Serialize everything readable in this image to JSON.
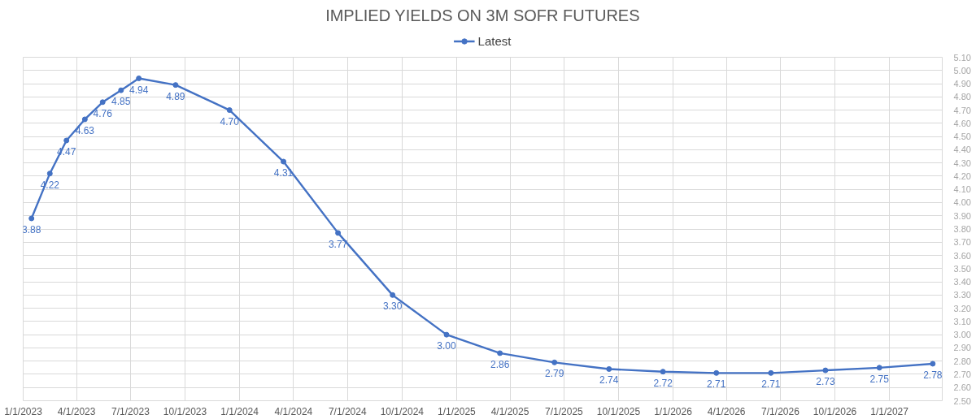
{
  "chart_data": {
    "type": "line",
    "title": "IMPLIED YIELDS ON 3M SOFR FUTURES",
    "x": [
      "2023-01-15",
      "2023-02-15",
      "2023-03-15",
      "2023-04-15",
      "2023-05-15",
      "2023-06-15",
      "2023-07-15",
      "2023-09-15",
      "2023-12-15",
      "2024-03-15",
      "2024-06-15",
      "2024-09-15",
      "2024-12-15",
      "2025-03-15",
      "2025-06-15",
      "2025-09-15",
      "2025-12-15",
      "2026-03-15",
      "2026-06-15",
      "2026-09-15",
      "2026-12-15",
      "2027-03-15"
    ],
    "series": [
      {
        "name": "Latest",
        "color": "#4472c4",
        "values": [
          3.88,
          4.22,
          4.47,
          4.63,
          4.76,
          4.85,
          4.94,
          4.89,
          4.7,
          4.31,
          3.77,
          3.3,
          3.0,
          2.86,
          2.79,
          2.74,
          2.72,
          2.71,
          2.71,
          2.73,
          2.75,
          2.78
        ],
        "value_labels": [
          "3.88",
          "4.22",
          "4.47",
          "4.63",
          "4.76",
          "4.85",
          "4.94",
          "4.89",
          "4.70",
          "4.31",
          "3.77",
          "3.30",
          "3.00",
          "2.86",
          "2.79",
          "2.74",
          "2.72",
          "2.71",
          "2.71",
          "2.73",
          "2.75",
          "2.78"
        ]
      }
    ],
    "xlim": [
      "2023-01-01",
      "2027-03-31"
    ],
    "xticks": [
      {
        "value": "2023-01-01",
        "label": "1/1/2023"
      },
      {
        "value": "2023-04-01",
        "label": "4/1/2023"
      },
      {
        "value": "2023-07-01",
        "label": "7/1/2023"
      },
      {
        "value": "2023-10-01",
        "label": "10/1/2023"
      },
      {
        "value": "2024-01-01",
        "label": "1/1/2024"
      },
      {
        "value": "2024-04-01",
        "label": "4/1/2024"
      },
      {
        "value": "2024-07-01",
        "label": "7/1/2024"
      },
      {
        "value": "2024-10-01",
        "label": "10/1/2024"
      },
      {
        "value": "2025-01-01",
        "label": "1/1/2025"
      },
      {
        "value": "2025-04-01",
        "label": "4/1/2025"
      },
      {
        "value": "2025-07-01",
        "label": "7/1/2025"
      },
      {
        "value": "2025-10-01",
        "label": "10/1/2025"
      },
      {
        "value": "2026-01-01",
        "label": "1/1/2026"
      },
      {
        "value": "2026-04-01",
        "label": "4/1/2026"
      },
      {
        "value": "2026-07-01",
        "label": "7/1/2026"
      },
      {
        "value": "2026-10-01",
        "label": "10/1/2026"
      },
      {
        "value": "2027-01-01",
        "label": "1/1/2027"
      }
    ],
    "ylim": [
      2.5,
      5.1
    ],
    "yticks": [
      {
        "value": 2.5,
        "label": "2.50"
      },
      {
        "value": 2.6,
        "label": "2.60"
      },
      {
        "value": 2.7,
        "label": "2.70"
      },
      {
        "value": 2.8,
        "label": "2.80"
      },
      {
        "value": 2.9,
        "label": "2.90"
      },
      {
        "value": 3.0,
        "label": "3.00"
      },
      {
        "value": 3.1,
        "label": "3.10"
      },
      {
        "value": 3.2,
        "label": "3.20"
      },
      {
        "value": 3.3,
        "label": "3.30"
      },
      {
        "value": 3.4,
        "label": "3.40"
      },
      {
        "value": 3.5,
        "label": "3.50"
      },
      {
        "value": 3.6,
        "label": "3.60"
      },
      {
        "value": 3.7,
        "label": "3.70"
      },
      {
        "value": 3.8,
        "label": "3.80"
      },
      {
        "value": 3.9,
        "label": "3.90"
      },
      {
        "value": 4.0,
        "label": "4.00"
      },
      {
        "value": 4.1,
        "label": "4.10"
      },
      {
        "value": 4.2,
        "label": "4.20"
      },
      {
        "value": 4.3,
        "label": "4.30"
      },
      {
        "value": 4.4,
        "label": "4.40"
      },
      {
        "value": 4.5,
        "label": "4.50"
      },
      {
        "value": 4.6,
        "label": "4.60"
      },
      {
        "value": 4.7,
        "label": "4.70"
      },
      {
        "value": 4.8,
        "label": "4.80"
      },
      {
        "value": 4.9,
        "label": "4.90"
      },
      {
        "value": 5.0,
        "label": "5.00"
      },
      {
        "value": 5.1,
        "label": "5.10"
      }
    ],
    "grid": true,
    "legend": "top",
    "marker": "circle",
    "line_style": "solid"
  }
}
